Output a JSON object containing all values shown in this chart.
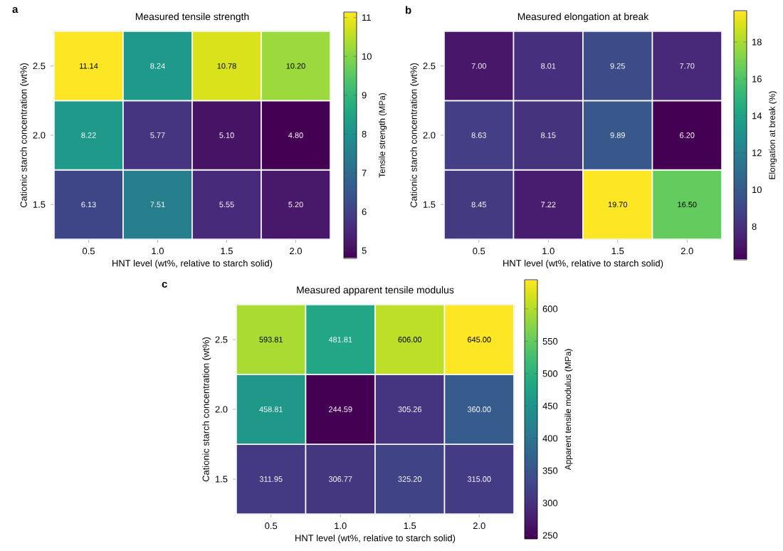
{
  "chart_data": [
    {
      "type": "heatmap",
      "title": "Measured tensile strength",
      "xlabel": "HNT level (wt%, relative to starch solid)",
      "ylabel": "Cationic starch concentration (wt%)",
      "clabel": "Tensile strength (MPa)",
      "annotations": [
        "a"
      ],
      "categories": [
        "0.5",
        "1.0",
        "1.5",
        "2.0"
      ],
      "y_categories": [
        "2.5",
        "2.0",
        "1.5"
      ],
      "cells": [
        [
          11.14,
          8.24,
          10.78,
          10.2
        ],
        [
          8.22,
          5.77,
          5.1,
          4.8
        ],
        [
          6.13,
          7.51,
          5.55,
          5.2
        ]
      ],
      "cell_labels": [
        [
          "11.14",
          "8.24",
          "10.78",
          "10.20"
        ],
        [
          "8.22",
          "5.77",
          "5.10",
          "4.80"
        ],
        [
          "6.13",
          "7.51",
          "5.55",
          "5.20"
        ]
      ],
      "clim": [
        4.8,
        11.14
      ],
      "cticks": [
        5,
        6,
        7,
        8,
        9,
        10,
        11
      ]
    },
    {
      "type": "heatmap",
      "title": "Measured elongation at break",
      "xlabel": "HNT level (wt%, relative to starch solid)",
      "ylabel": "Cationic starch concentration (wt%)",
      "clabel": "Elongation at break (%)",
      "annotations": [
        "b"
      ],
      "categories": [
        "0.5",
        "1.0",
        "1.5",
        "2.0"
      ],
      "y_categories": [
        "2.5",
        "2.0",
        "1.5"
      ],
      "cells": [
        [
          7.0,
          8.01,
          9.25,
          7.7
        ],
        [
          8.63,
          8.15,
          9.89,
          6.2
        ],
        [
          8.45,
          7.22,
          19.7,
          16.5
        ]
      ],
      "cell_labels": [
        [
          "7.00",
          "8.01",
          "9.25",
          "7.70"
        ],
        [
          "8.63",
          "8.15",
          "9.89",
          "6.20"
        ],
        [
          "8.45",
          "7.22",
          "19.70",
          "16.50"
        ]
      ],
      "clim": [
        6.2,
        19.7
      ],
      "cticks": [
        8,
        10,
        12,
        14,
        16,
        18
      ]
    },
    {
      "type": "heatmap",
      "title": "Measured apparent tensile modulus",
      "xlabel": "HNT level (wt%, relative to starch solid)",
      "ylabel": "Cationic starch concentration (wt%)",
      "clabel": "Apparent tensile modulus (MPa)",
      "annotations": [
        "c"
      ],
      "categories": [
        "0.5",
        "1.0",
        "1.5",
        "2.0"
      ],
      "y_categories": [
        "2.5",
        "2.0",
        "1.5"
      ],
      "cells": [
        [
          593.81,
          481.81,
          606.0,
          645.0
        ],
        [
          458.81,
          244.59,
          305.26,
          360.0
        ],
        [
          311.95,
          306.77,
          325.2,
          315.0
        ]
      ],
      "cell_labels": [
        [
          "593.81",
          "481.81",
          "606.00",
          "645.00"
        ],
        [
          "458.81",
          "244.59",
          "305.26",
          "360.00"
        ],
        [
          "311.95",
          "306.77",
          "325.20",
          "315.00"
        ]
      ],
      "clim": [
        244.59,
        645.0
      ],
      "cticks": [
        250,
        300,
        350,
        400,
        450,
        500,
        550,
        600
      ]
    }
  ]
}
